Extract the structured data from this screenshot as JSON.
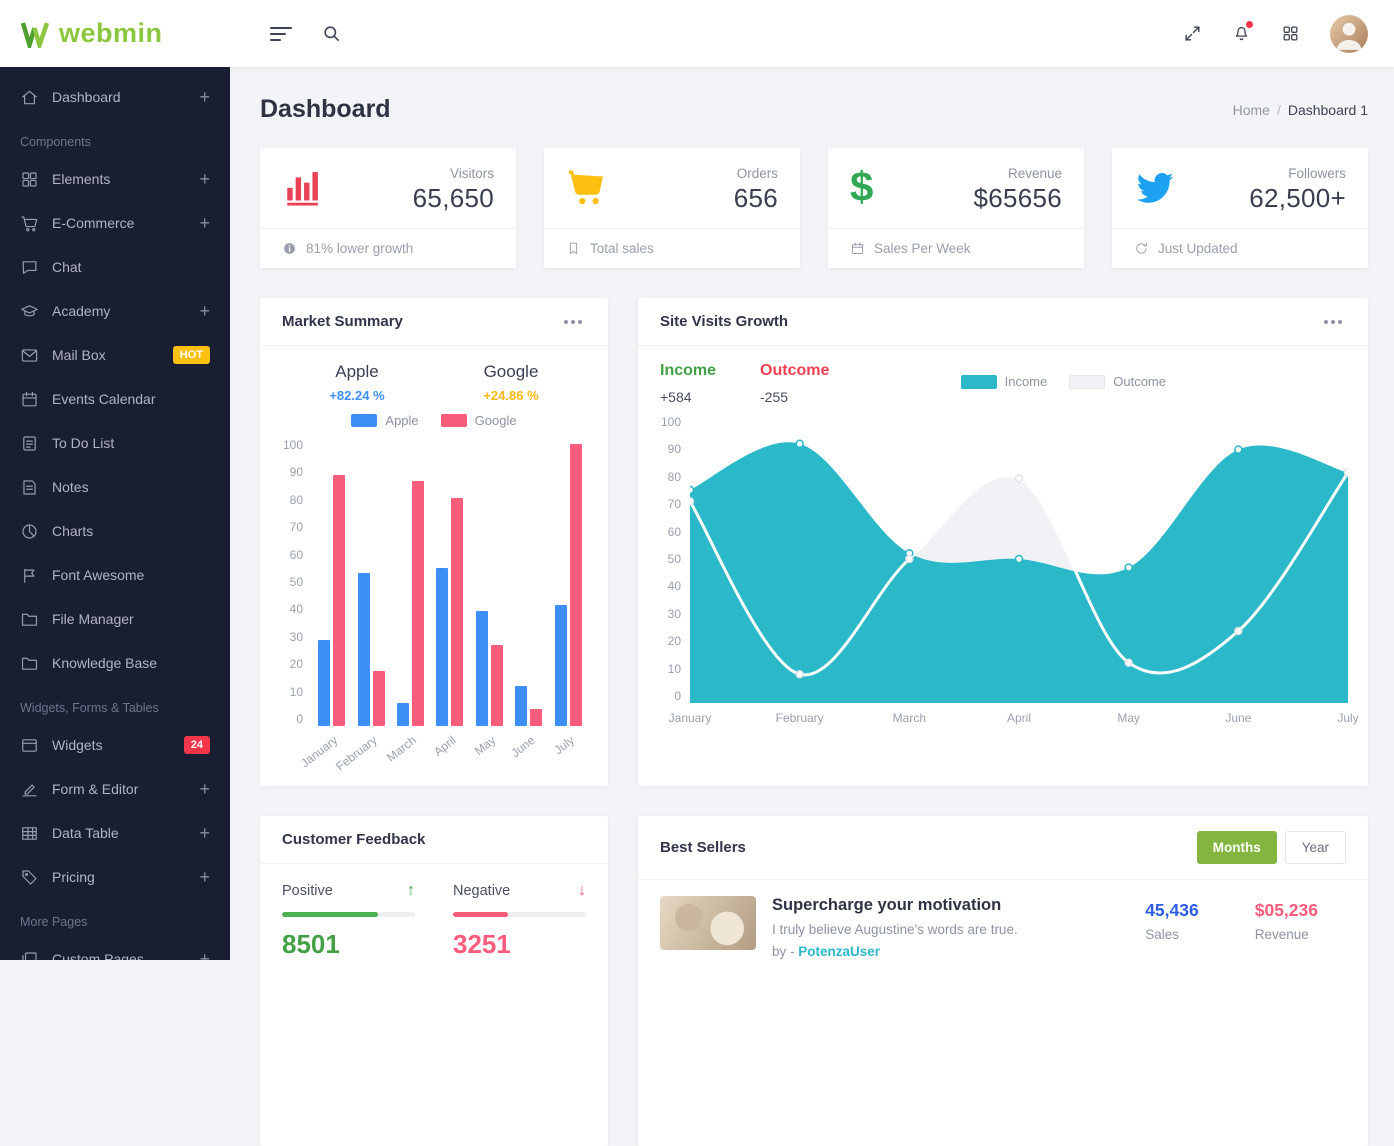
{
  "topbar": {
    "logo_text": "webmin",
    "left_icons": [
      "menu-icon",
      "search-icon"
    ],
    "right_icons": [
      "fullscreen-icon",
      "notifications-icon",
      "apps-icon",
      "user-avatar"
    ],
    "notification_dot_color": "#f5364a"
  },
  "sidebar": {
    "items": [
      {
        "type": "item",
        "label": "Dashboard",
        "icon": "home-icon",
        "plus": true
      },
      {
        "type": "section",
        "label": "Components"
      },
      {
        "type": "item",
        "label": "Elements",
        "icon": "elements-icon",
        "plus": true
      },
      {
        "type": "item",
        "label": "E-Commerce",
        "icon": "shopping-cart-icon",
        "plus": true
      },
      {
        "type": "item",
        "label": "Chat",
        "icon": "chat-icon"
      },
      {
        "type": "item",
        "label": "Academy",
        "icon": "academy-icon",
        "plus": true
      },
      {
        "type": "item",
        "label": "Mail Box",
        "icon": "mail-icon",
        "badge": {
          "text": "HOT",
          "color": "#fdc010",
          "text_color": "#ffffff"
        }
      },
      {
        "type": "item",
        "label": "Events Calendar",
        "icon": "calendar-icon"
      },
      {
        "type": "item",
        "label": "To Do List",
        "icon": "todo-icon"
      },
      {
        "type": "item",
        "label": "Notes",
        "icon": "notes-icon"
      },
      {
        "type": "item",
        "label": "Charts",
        "icon": "pie-chart-icon"
      },
      {
        "type": "item",
        "label": "Font Awesome",
        "icon": "flag-icon"
      },
      {
        "type": "item",
        "label": "File Manager",
        "icon": "folder-icon"
      },
      {
        "type": "item",
        "label": "Knowledge Base",
        "icon": "folder-icon"
      },
      {
        "type": "section",
        "label": "Widgets, Forms & Tables"
      },
      {
        "type": "item",
        "label": "Widgets",
        "icon": "widgets-icon",
        "badge": {
          "text": "24",
          "color": "#f5364a",
          "text_color": "#ffffff"
        }
      },
      {
        "type": "item",
        "label": "Form & Editor",
        "icon": "edit-icon",
        "plus": true
      },
      {
        "type": "item",
        "label": "Data Table",
        "icon": "table-icon",
        "plus": true
      },
      {
        "type": "item",
        "label": "Pricing",
        "icon": "tag-icon",
        "plus": true
      },
      {
        "type": "section",
        "label": "More Pages"
      },
      {
        "type": "item",
        "label": "Custom Pages",
        "icon": "pages-icon",
        "plus": true
      }
    ]
  },
  "page": {
    "title": "Dashboard",
    "breadcrumb": {
      "home": "Home",
      "separator": "/",
      "current": "Dashboard 1"
    }
  },
  "stat_cards": [
    {
      "icon": "bar-chart-icon",
      "icon_color": "#e94256",
      "label": "Visitors",
      "value": "65,650",
      "footer_icon": "info-icon",
      "footer_text": "81% lower growth"
    },
    {
      "icon": "shopping-cart-icon",
      "icon_color": "#fdc010",
      "label": "Orders",
      "value": "656",
      "footer_icon": "bookmark-icon",
      "footer_text": "Total sales"
    },
    {
      "icon": "dollar-icon",
      "icon_color": "#33a854",
      "label": "Revenue",
      "value": "$65656",
      "footer_icon": "calendar-icon",
      "footer_text": "Sales Per Week"
    },
    {
      "icon": "twitter-icon",
      "icon_color": "#1da1f2",
      "label": "Followers",
      "value": "62,500+",
      "footer_icon": "refresh-icon",
      "footer_text": "Just Updated"
    }
  ],
  "market_summary": {
    "title": "Market Summary",
    "menu_icon": "more-options-icon",
    "columns": [
      {
        "name": "Apple",
        "change": "+82.24 %",
        "color": "#3e8ef7"
      },
      {
        "name": "Google",
        "change": "+24.86 %",
        "color": "#fdb810"
      }
    ],
    "chart_data": {
      "type": "bar",
      "categories": [
        "January",
        "February",
        "March",
        "April",
        "May",
        "June",
        "July"
      ],
      "series": [
        {
          "name": "Apple",
          "color": "#3e8ef7",
          "values": [
            30,
            53,
            8,
            55,
            40,
            14,
            42
          ]
        },
        {
          "name": "Google",
          "color": "#fa5c7c",
          "values": [
            87,
            19,
            85,
            79,
            28,
            6,
            98
          ]
        }
      ],
      "ylim": [
        0,
        100
      ],
      "ytick_step": 10,
      "grid": false,
      "legend_position": "top"
    }
  },
  "site_visits": {
    "title": "Site Visits Growth",
    "menu_icon": "more-options-icon",
    "income_label": "Income",
    "income_value": "+584",
    "income_color": "#43a047",
    "outcome_label": "Outcome",
    "outcome_value": "-255",
    "outcome_color": "#ef4050",
    "chart_data": {
      "type": "area",
      "categories": [
        "January",
        "February",
        "March",
        "April",
        "May",
        "June",
        "July"
      ],
      "series": [
        {
          "name": "Income",
          "color": "#2bb8c9",
          "values": [
            74,
            90,
            52,
            50,
            47,
            88,
            80
          ]
        },
        {
          "name": "Outcome",
          "color": "#f1f2f5",
          "swatch_border": "#e2e5ec",
          "line_color": "#ffffff",
          "values": [
            70,
            10,
            50,
            78,
            14,
            25,
            80
          ]
        }
      ],
      "ylim": [
        0,
        100
      ],
      "ytick_step": 10,
      "grid": false,
      "legend_position": "top"
    }
  },
  "customer_feedback": {
    "title": "Customer Feedback",
    "positive": {
      "label": "Positive",
      "arrow_icon": "arrow-up-icon",
      "value": "8501",
      "percent": 72,
      "color": "#43a047",
      "bar_color": "#4caf50"
    },
    "negative": {
      "label": "Negative",
      "arrow_icon": "arrow-down-icon",
      "value": "3251",
      "percent": 41,
      "color": "#fa5c7c",
      "bar_color": "#fa5c7c"
    }
  },
  "best_sellers": {
    "title": "Best Sellers",
    "toggle": [
      {
        "label": "Months",
        "active": true,
        "active_color": "#84b540"
      },
      {
        "label": "Year",
        "active": false
      }
    ],
    "items": [
      {
        "title": "Supercharge your motivation",
        "subtitle": "I truly believe Augustine's words are true.",
        "author_prefix": "by -",
        "author": "PotenzaUser",
        "author_color": "#2bb8c9",
        "sales_value": "45,436",
        "sales_label": "Sales",
        "sales_color": "#2c5ce5",
        "revenue_value": "$05,236",
        "revenue_label": "Revenue",
        "revenue_color": "#fa5c7c"
      }
    ]
  }
}
